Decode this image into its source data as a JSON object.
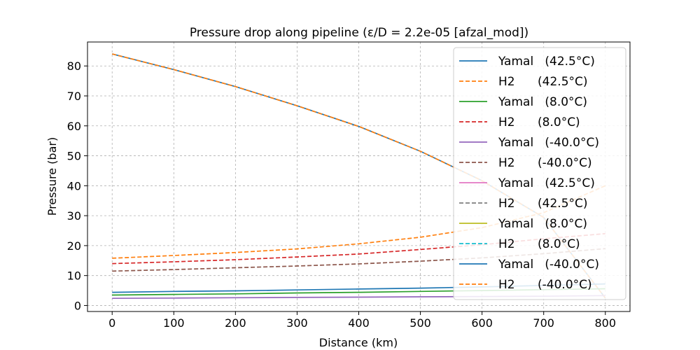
{
  "chart_data": {
    "type": "line",
    "title": "Pressure drop along pipeline (ε/D = 2.2e-05 [afzal_mod])",
    "xlabel": "Distance (km)",
    "ylabel": "Pressure (bar)",
    "xlim": [
      -40,
      840
    ],
    "ylim": [
      -2,
      88
    ],
    "xticks": [
      0,
      100,
      200,
      300,
      400,
      500,
      600,
      700,
      800
    ],
    "yticks": [
      0,
      10,
      20,
      30,
      40,
      50,
      60,
      70,
      80
    ],
    "grid": true,
    "legend_position": "top-right",
    "x": [
      0,
      100,
      200,
      300,
      400,
      500,
      600,
      700,
      800
    ],
    "series": [
      {
        "name": "Yamal   (42.5°C)",
        "color": "#1f77b4",
        "style": "solid",
        "values": [
          84.0,
          78.8,
          73.1,
          66.7,
          59.8,
          51.5,
          41.7,
          29.4,
          2.5
        ]
      },
      {
        "name": "H2      (42.5°C)",
        "color": "#ff7f0e",
        "style": "dashed",
        "values": [
          84.0,
          78.8,
          73.1,
          66.7,
          59.8,
          51.5,
          41.7,
          29.4,
          2.5
        ]
      },
      {
        "name": "Yamal   (8.0°C)",
        "color": "#2ca02c",
        "style": "solid",
        "values": [
          3.5,
          3.7,
          3.9,
          4.2,
          4.4,
          4.7,
          5.0,
          5.3,
          5.6
        ]
      },
      {
        "name": "H2      (8.0°C)",
        "color": "#d62728",
        "style": "dashed",
        "values": [
          14.0,
          14.6,
          15.3,
          16.2,
          17.2,
          18.7,
          20.3,
          22.3,
          24.0
        ]
      },
      {
        "name": "Yamal   (-40.0°C)",
        "color": "#9467bd",
        "style": "solid",
        "values": [
          2.4,
          2.5,
          2.6,
          2.7,
          2.8,
          2.9,
          3.0,
          3.1,
          3.3
        ]
      },
      {
        "name": "H2      (-40.0°C)",
        "color": "#8c564b",
        "style": "dashed",
        "values": [
          11.5,
          12.0,
          12.6,
          13.2,
          13.9,
          14.8,
          15.9,
          17.3,
          19.0
        ]
      },
      {
        "name": "Yamal   (42.5°C)",
        "color": "#e377c2",
        "style": "solid",
        "values": [
          null,
          null,
          null,
          null,
          null,
          null,
          null,
          null,
          null
        ]
      },
      {
        "name": "H2      (42.5°C)",
        "color": "#7f7f7f",
        "style": "dashed",
        "values": [
          null,
          null,
          null,
          null,
          null,
          null,
          null,
          null,
          null
        ]
      },
      {
        "name": "Yamal   (8.0°C)",
        "color": "#bcbd22",
        "style": "solid",
        "values": [
          null,
          null,
          null,
          null,
          null,
          null,
          null,
          null,
          null
        ]
      },
      {
        "name": "H2      (8.0°C)",
        "color": "#17becf",
        "style": "dashed",
        "values": [
          null,
          null,
          null,
          null,
          null,
          null,
          null,
          null,
          null
        ]
      },
      {
        "name": "Yamal   (-40.0°C)",
        "color": "#1f77b4",
        "style": "solid",
        "values": [
          4.4,
          4.7,
          4.9,
          5.2,
          5.5,
          5.8,
          6.2,
          6.7,
          7.2
        ]
      },
      {
        "name": "H2      (-40.0°C)",
        "color": "#ff7f0e",
        "style": "dashed",
        "values": [
          15.8,
          16.7,
          17.7,
          18.9,
          20.6,
          22.8,
          26.0,
          31.0,
          40.0
        ]
      }
    ]
  }
}
